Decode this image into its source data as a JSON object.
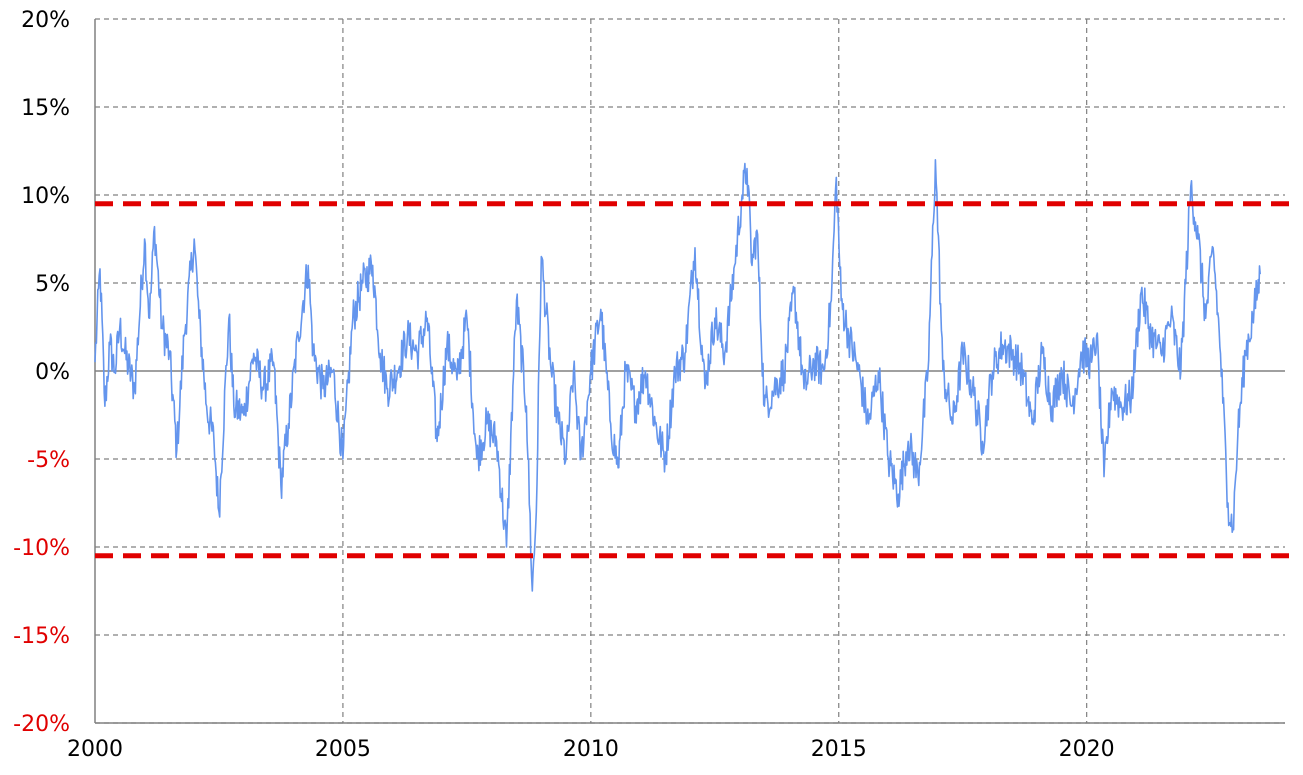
{
  "chart_data": {
    "type": "line",
    "title": "",
    "xlabel": "",
    "ylabel": "",
    "xlim": [
      2000,
      2024
    ],
    "ylim": [
      -20,
      20
    ],
    "x_ticks": [
      {
        "value": 2000,
        "label": "2000"
      },
      {
        "value": 2005,
        "label": "2005"
      },
      {
        "value": 2010,
        "label": "2010"
      },
      {
        "value": 2015,
        "label": "2015"
      },
      {
        "value": 2020,
        "label": "2020"
      }
    ],
    "y_ticks": [
      {
        "value": 20,
        "label": "20%",
        "color": "#000000"
      },
      {
        "value": 15,
        "label": "15%",
        "color": "#000000"
      },
      {
        "value": 10,
        "label": "10%",
        "color": "#000000"
      },
      {
        "value": 5,
        "label": "5%",
        "color": "#000000"
      },
      {
        "value": 0,
        "label": "0%",
        "color": "#000000"
      },
      {
        "value": -5,
        "label": "-5%",
        "color": "#e00000"
      },
      {
        "value": -10,
        "label": "-10%",
        "color": "#e00000"
      },
      {
        "value": -15,
        "label": "-15%",
        "color": "#e00000"
      },
      {
        "value": -20,
        "label": "-20%",
        "color": "#e00000"
      }
    ],
    "grid": true,
    "legend": "none",
    "colors": {
      "series": "#6495ed",
      "threshold": "#e00000",
      "grid": "#808080",
      "zero_line": "#808080",
      "axis": "#808080"
    },
    "thresholds": [
      9.5,
      -10.5
    ],
    "series": [
      {
        "x": [
          2000.0,
          2000.1,
          2000.2,
          2000.3,
          2000.4,
          2000.5,
          2000.6,
          2000.8,
          2001.0,
          2001.1,
          2001.2,
          2001.35,
          2001.5,
          2001.65,
          2001.8,
          2002.0,
          2002.1,
          2002.25,
          2002.4,
          2002.5,
          2002.7,
          2002.8,
          2003.0,
          2003.2,
          2003.4,
          2003.6,
          2003.75,
          2003.9,
          2004.1,
          2004.3,
          2004.4,
          2004.6,
          2004.8,
          2005.0,
          2005.2,
          2005.4,
          2005.6,
          2005.75,
          2005.9,
          2006.1,
          2006.3,
          2006.5,
          2006.7,
          2006.9,
          2007.1,
          2007.3,
          2007.5,
          2007.7,
          2007.9,
          2008.1,
          2008.3,
          2008.5,
          2008.7,
          2008.82,
          2008.9,
          2009.0,
          2009.2,
          2009.35,
          2009.5,
          2009.65,
          2009.8,
          2010.0,
          2010.2,
          2010.4,
          2010.55,
          2010.7,
          2010.9,
          2011.1,
          2011.3,
          2011.5,
          2011.7,
          2011.9,
          2012.1,
          2012.3,
          2012.5,
          2012.7,
          2012.9,
          2013.05,
          2013.15,
          2013.25,
          2013.35,
          2013.5,
          2013.7,
          2013.9,
          2014.1,
          2014.3,
          2014.5,
          2014.7,
          2014.85,
          2014.95,
          2015.05,
          2015.2,
          2015.4,
          2015.6,
          2015.8,
          2016.0,
          2016.2,
          2016.4,
          2016.6,
          2016.8,
          2016.95,
          2017.1,
          2017.3,
          2017.5,
          2017.7,
          2017.9,
          2018.1,
          2018.3,
          2018.5,
          2018.7,
          2018.9,
          2019.1,
          2019.3,
          2019.5,
          2019.7,
          2019.9,
          2020.1,
          2020.2,
          2020.35,
          2020.5,
          2020.7,
          2020.9,
          2021.1,
          2021.3,
          2021.5,
          2021.7,
          2021.9,
          2022.1,
          2022.25,
          2022.4,
          2022.55,
          2022.7,
          2022.85,
          2022.95,
          2023.05,
          2023.2,
          2023.35,
          2023.5
        ],
        "values": [
          0.5,
          5.8,
          -2.0,
          1.5,
          0.0,
          2.5,
          1.0,
          -1.0,
          7.5,
          3.0,
          8.2,
          2.5,
          1.0,
          -4.5,
          2.0,
          7.5,
          3.0,
          -2.0,
          -4.0,
          -8.0,
          3.0,
          -2.0,
          -2.5,
          1.0,
          -1.0,
          0.5,
          -6.5,
          -3.0,
          2.0,
          6.0,
          1.0,
          -1.0,
          0.0,
          -5.0,
          3.0,
          5.0,
          6.0,
          1.0,
          -1.0,
          0.0,
          2.0,
          1.0,
          3.0,
          -4.0,
          1.5,
          -0.5,
          3.0,
          -5.0,
          -3.0,
          -4.0,
          -10.0,
          4.0,
          -2.0,
          -12.5,
          -8.0,
          6.5,
          0.0,
          -3.0,
          -5.0,
          0.0,
          -5.0,
          0.0,
          3.5,
          -3.0,
          -5.5,
          0.0,
          -2.0,
          0.0,
          -3.0,
          -5.0,
          0.0,
          1.0,
          7.0,
          -1.0,
          3.0,
          1.0,
          6.0,
          10.0,
          11.5,
          6.0,
          8.0,
          -2.0,
          -1.0,
          0.0,
          4.5,
          -1.0,
          0.5,
          0.0,
          4.0,
          11.0,
          4.0,
          2.0,
          0.0,
          -3.0,
          0.0,
          -5.0,
          -7.0,
          -4.0,
          -6.0,
          0.0,
          12.0,
          0.0,
          -3.0,
          1.0,
          -1.0,
          -4.0,
          0.0,
          1.5,
          1.0,
          0.0,
          -3.0,
          1.0,
          -2.0,
          0.0,
          -2.0,
          1.0,
          0.5,
          2.0,
          -6.0,
          -1.0,
          -2.0,
          -1.5,
          4.5,
          2.0,
          1.0,
          3.0,
          0.0,
          10.5,
          7.5,
          3.0,
          7.0,
          1.0,
          -7.5,
          -9.0,
          -3.5,
          1.0,
          3.0,
          5.5
        ]
      }
    ]
  }
}
